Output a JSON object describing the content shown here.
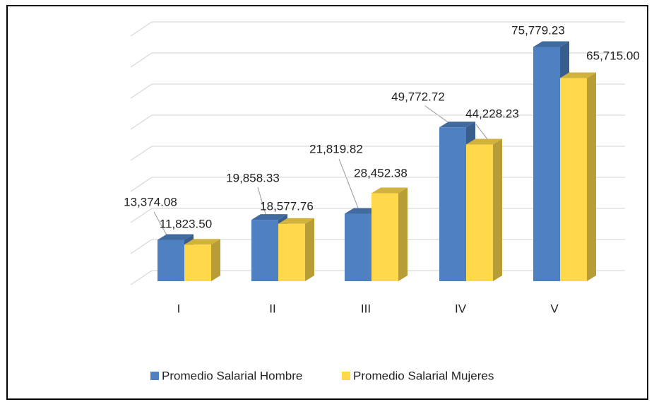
{
  "chart_data": {
    "type": "bar3d",
    "categories": [
      "I",
      "II",
      "III",
      "IV",
      "V"
    ],
    "series": [
      {
        "name": "Promedio Salarial Hombre",
        "color": "#4f81c2",
        "values": [
          13374.08,
          19858.33,
          21819.82,
          49772.72,
          75779.23
        ],
        "value_labels": [
          "13,374.08",
          "19,858.33",
          "21,819.82",
          "49,772.72",
          "75,779.23"
        ]
      },
      {
        "name": "Promedio Salarial Mujeres",
        "color": "#ffd94a",
        "values": [
          11823.5,
          18577.76,
          28452.38,
          44228.23,
          65715.0
        ],
        "value_labels": [
          "11,823.50",
          "18,577.76",
          "28,452.38",
          "44,228.23",
          "65,715.00"
        ]
      }
    ],
    "ylim": [
      0,
      80000
    ],
    "yticks": [
      0,
      10000,
      20000,
      30000,
      40000,
      50000,
      60000,
      70000,
      80000
    ],
    "grid": true,
    "legend": "bottom"
  }
}
